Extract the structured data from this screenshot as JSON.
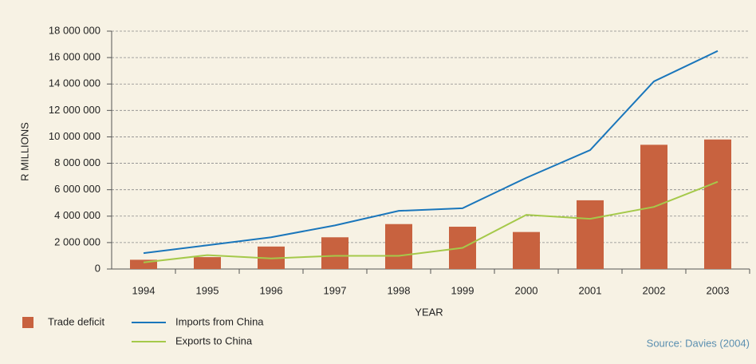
{
  "chart_data": {
    "type": "bar",
    "y_label": "R MILLIONS",
    "x_label": "YEAR",
    "source": "Source: Davies (2004)",
    "categories": [
      "1994",
      "1995",
      "1996",
      "1997",
      "1998",
      "1999",
      "2000",
      "2001",
      "2002",
      "2003"
    ],
    "series": [
      {
        "name": "Trade deficit",
        "type": "bar",
        "color": "#c8623f",
        "values": [
          700000,
          900000,
          1700000,
          2400000,
          3400000,
          3200000,
          2800000,
          5200000,
          9400000,
          9800000
        ]
      },
      {
        "name": "Imports from China",
        "type": "line",
        "color": "#1a76bb",
        "values": [
          1200000,
          1800000,
          2400000,
          3300000,
          4400000,
          4600000,
          6900000,
          9000000,
          14200000,
          16500000
        ]
      },
      {
        "name": "Exports to China",
        "type": "line",
        "color": "#a5c94a",
        "values": [
          500000,
          1050000,
          800000,
          1000000,
          1000000,
          1600000,
          4100000,
          3800000,
          4700000,
          6600000
        ]
      }
    ],
    "ylim": [
      0,
      18000000
    ],
    "yticks": [
      0,
      {
        "value": 2000000,
        "label": "2 000 000"
      },
      {
        "value": 4000000,
        "label": "4 000 000"
      },
      {
        "value": 6000000,
        "label": "6 000 000"
      },
      {
        "value": 8000000,
        "label": "8 000 000"
      },
      {
        "value": 10000000,
        "label": "10 000 000"
      },
      {
        "value": 12000000,
        "label": "12 000 000"
      },
      {
        "value": 14000000,
        "label": "14 000 000"
      },
      {
        "value": 16000000,
        "label": "16 000 000"
      },
      {
        "value": 18000000,
        "label": "18 000 000"
      }
    ],
    "grid": true
  }
}
